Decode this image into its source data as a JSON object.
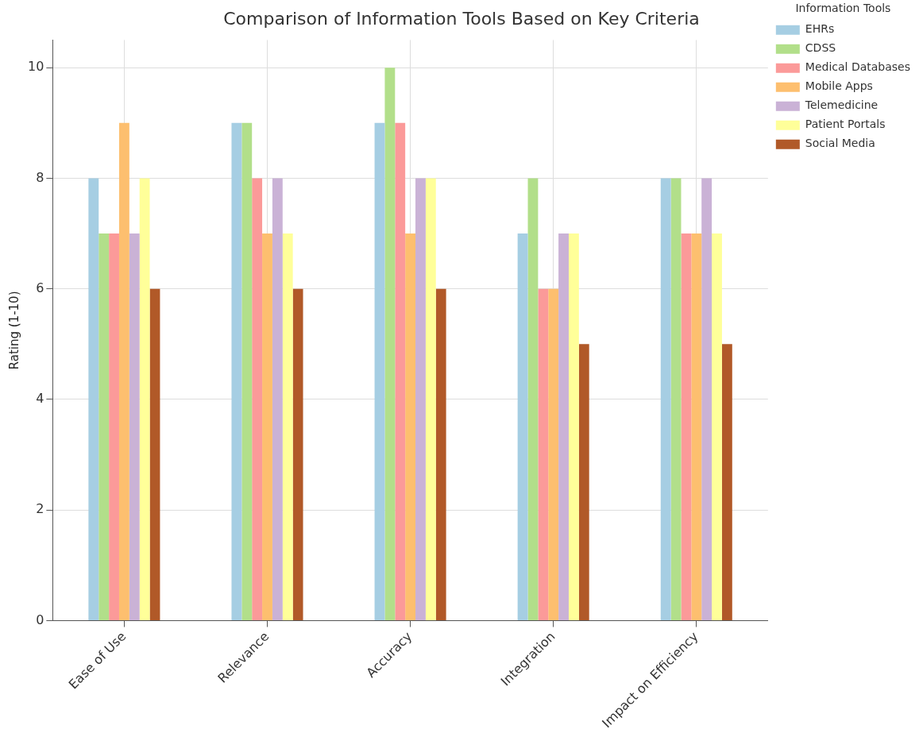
{
  "chart_data": {
    "type": "bar",
    "title": "Comparison of Information Tools Based on Key Criteria",
    "ylabel": "Rating (1-10)",
    "legend_title": "Information Tools",
    "categories": [
      "Ease of Use",
      "Relevance",
      "Accuracy",
      "Integration",
      "Impact on Efficiency"
    ],
    "series": [
      {
        "name": "EHRs",
        "color": "#a6cee3",
        "values": [
          8,
          9,
          9,
          7,
          8
        ]
      },
      {
        "name": "CDSS",
        "color": "#b2df8a",
        "values": [
          7,
          9,
          10,
          8,
          8
        ]
      },
      {
        "name": "Medical Databases",
        "color": "#fb9a99",
        "values": [
          7,
          8,
          9,
          6,
          7
        ]
      },
      {
        "name": "Mobile Apps",
        "color": "#fdbf6f",
        "values": [
          9,
          7,
          7,
          6,
          7
        ]
      },
      {
        "name": "Telemedicine",
        "color": "#cab2d6",
        "values": [
          7,
          8,
          8,
          7,
          8
        ]
      },
      {
        "name": "Patient Portals",
        "color": "#ffff99",
        "values": [
          8,
          7,
          8,
          7,
          7
        ]
      },
      {
        "name": "Social Media",
        "color": "#b15928",
        "values": [
          6,
          6,
          6,
          5,
          5
        ]
      }
    ],
    "ylim": [
      0,
      10.5
    ],
    "yticks": [
      0,
      2,
      4,
      6,
      8,
      10
    ],
    "grid": true,
    "legend": "top right"
  }
}
